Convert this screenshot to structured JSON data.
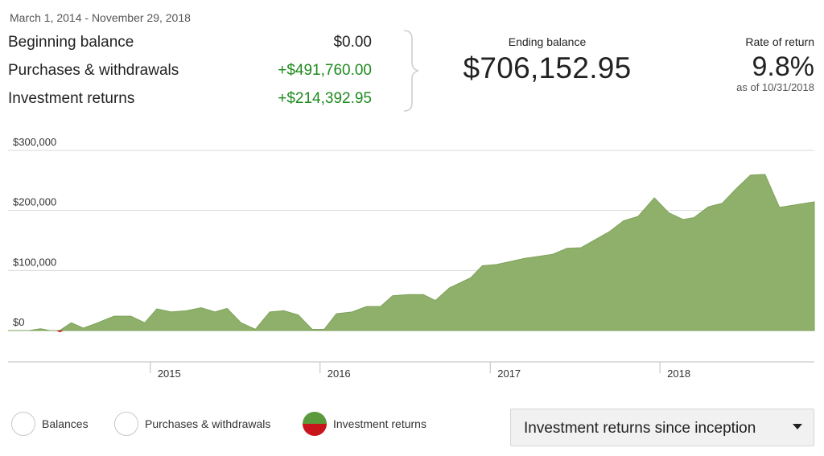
{
  "summary": {
    "date_range": "March 1, 2014 - November 29, 2018",
    "rows": [
      {
        "label": "Beginning balance",
        "value": "$0.00"
      },
      {
        "label": "Purchases & withdrawals",
        "value": "+$491,760.00"
      },
      {
        "label": "Investment returns",
        "value": "+$214,392.95"
      }
    ],
    "ending_balance_label": "Ending balance",
    "ending_balance_value": "$706,152.95",
    "rate_of_return_label": "Rate of return",
    "rate_of_return_value": "9.8%",
    "rate_of_return_asof": "as of 10/31/2018"
  },
  "colors": {
    "positive_text": "#1e8a1e",
    "area_fill": "#8fb06a",
    "area_stroke": "#7ea25a",
    "negative_fill": "#c8151b",
    "gridline": "#d9d9d9"
  },
  "legend": {
    "items": [
      {
        "label": "Balances",
        "icon": "radio-circle-icon"
      },
      {
        "label": "Purchases & withdrawals",
        "icon": "radio-circle-icon"
      },
      {
        "label": "Investment returns",
        "icon": "green-red-circle-icon"
      }
    ]
  },
  "dropdown": {
    "selected": "Investment returns since inception",
    "icon": "caret-down-icon"
  },
  "chart_data": {
    "type": "area",
    "title": "",
    "xlabel": "",
    "ylabel": "",
    "x_range": [
      "2014-03-01",
      "2018-11-29"
    ],
    "ylim": [
      -50000,
      300000
    ],
    "y_ticks": [
      0,
      100000,
      200000,
      300000
    ],
    "y_tick_labels": [
      "$0",
      "$100,000",
      "$200,000",
      "$300,000"
    ],
    "x_ticks": [
      "2015-01-01",
      "2016-01-01",
      "2017-01-01",
      "2018-01-01"
    ],
    "x_tick_labels": [
      "2015",
      "2016",
      "2017",
      "2018"
    ],
    "grid": true,
    "series": [
      {
        "name": "Investment returns",
        "points": [
          [
            "2014-03-01",
            0
          ],
          [
            "2014-04-15",
            0
          ],
          [
            "2014-05-10",
            3000
          ],
          [
            "2014-05-30",
            0
          ],
          [
            "2014-06-20",
            -3000
          ],
          [
            "2014-07-15",
            13000
          ],
          [
            "2014-08-10",
            4000
          ],
          [
            "2014-09-10",
            13000
          ],
          [
            "2014-10-15",
            24000
          ],
          [
            "2014-11-20",
            24000
          ],
          [
            "2014-12-20",
            13000
          ],
          [
            "2015-01-15",
            36000
          ],
          [
            "2015-02-15",
            31000
          ],
          [
            "2015-03-20",
            33000
          ],
          [
            "2015-04-20",
            38000
          ],
          [
            "2015-05-20",
            31000
          ],
          [
            "2015-06-15",
            37000
          ],
          [
            "2015-07-15",
            13000
          ],
          [
            "2015-08-15",
            2000
          ],
          [
            "2015-09-15",
            31000
          ],
          [
            "2015-10-15",
            33000
          ],
          [
            "2015-11-15",
            26000
          ],
          [
            "2015-12-15",
            2000
          ],
          [
            "2016-01-10",
            2000
          ],
          [
            "2016-02-05",
            28000
          ],
          [
            "2016-03-10",
            31000
          ],
          [
            "2016-04-10",
            40000
          ],
          [
            "2016-05-10",
            40000
          ],
          [
            "2016-06-05",
            58000
          ],
          [
            "2016-07-10",
            60000
          ],
          [
            "2016-08-10",
            60000
          ],
          [
            "2016-09-05",
            50000
          ],
          [
            "2016-10-05",
            71000
          ],
          [
            "2016-11-20",
            88000
          ],
          [
            "2016-12-15",
            108000
          ],
          [
            "2017-01-15",
            110000
          ],
          [
            "2017-03-15",
            120000
          ],
          [
            "2017-05-15",
            127000
          ],
          [
            "2017-06-15",
            137000
          ],
          [
            "2017-07-15",
            138000
          ],
          [
            "2017-09-15",
            165000
          ],
          [
            "2017-10-15",
            183000
          ],
          [
            "2017-11-15",
            190000
          ],
          [
            "2017-12-20",
            221000
          ],
          [
            "2018-01-20",
            196000
          ],
          [
            "2018-02-20",
            185000
          ],
          [
            "2018-03-15",
            188000
          ],
          [
            "2018-04-15",
            206000
          ],
          [
            "2018-05-15",
            212000
          ],
          [
            "2018-06-15",
            237000
          ],
          [
            "2018-07-15",
            259000
          ],
          [
            "2018-08-15",
            260000
          ],
          [
            "2018-09-15",
            205000
          ],
          [
            "2018-11-29",
            214392.95
          ]
        ]
      }
    ]
  }
}
